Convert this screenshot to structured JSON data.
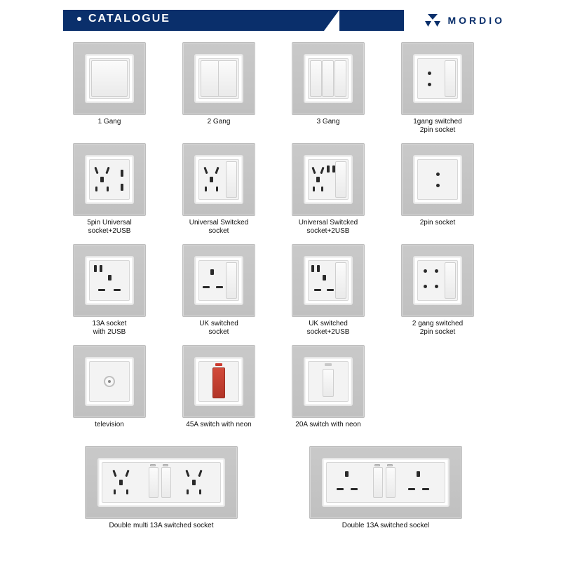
{
  "header": {
    "title": "CATALOGUE",
    "brand": "MORDIO"
  },
  "colors": {
    "brand_blue": "#0a2f6b",
    "plate_grey": "#c4c4c4",
    "rocker_red": "#c23b2d"
  },
  "products": {
    "row1": [
      {
        "label": "1 Gang"
      },
      {
        "label": "2 Gang"
      },
      {
        "label": "3 Gang"
      },
      {
        "label": "1gang switched\n2pin socket"
      }
    ],
    "row2": [
      {
        "label": "5pin Universal\nsocket+2USB"
      },
      {
        "label": "Universal Switcked\nsocket"
      },
      {
        "label": "Universal Switcked\nsocket+2USB"
      },
      {
        "label": "2pin socket"
      }
    ],
    "row3": [
      {
        "label": "13A socket\nwith 2USB"
      },
      {
        "label": "UK switched\nsocket"
      },
      {
        "label": "UK switched\nsocket+2USB"
      },
      {
        "label": "2 gang switched\n2pin socket"
      }
    ],
    "row4": [
      {
        "label": "television"
      },
      {
        "label": "45A switch with neon"
      },
      {
        "label": "20A switch with neon"
      }
    ],
    "row5": [
      {
        "label": "Double multi 13A switched socket"
      },
      {
        "label": "Double 13A switched sockel"
      }
    ]
  }
}
